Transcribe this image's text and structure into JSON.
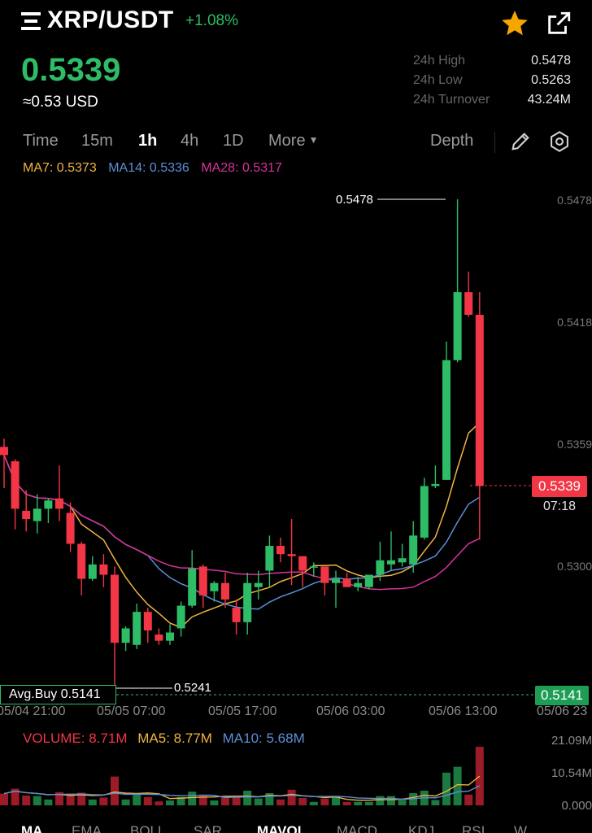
{
  "header": {
    "pair": "XRP/USDT",
    "change": "+1.08%",
    "price": "0.5339",
    "approx": "≈0.53 USD",
    "stats": [
      {
        "label": "24h High",
        "value": "0.5478"
      },
      {
        "label": "24h Low",
        "value": "0.5263"
      },
      {
        "label": "24h Turnover",
        "value": "43.24M"
      }
    ]
  },
  "tabs": {
    "time": "Time",
    "m15": "15m",
    "h1": "1h",
    "h4": "4h",
    "d1": "1D",
    "more": "More",
    "depth": "Depth"
  },
  "ma": {
    "ma7": "MA7: 0.5373",
    "ma14": "MA14: 0.5336",
    "ma28": "MA28: 0.5317"
  },
  "price_axis": [
    "0.5478",
    "0.5418",
    "0.5359",
    "0.5300"
  ],
  "current_price": "0.5339",
  "countdown": "07:18",
  "avg_buy": "Avg.Buy 0.5141",
  "avg_buy_value": "0.5141",
  "high_marker": "0.5478",
  "low_marker": "0.5241",
  "time_axis": [
    "05/04 21:00",
    "05/05 07:00",
    "05/05 17:00",
    "05/06 03:00",
    "05/06 13:00",
    "05/06 23"
  ],
  "volume": {
    "volume": "VOLUME: 8.71M",
    "ma5": "MA5: 8.77M",
    "ma10": "MA10: 5.68M",
    "axis": [
      "21.09M",
      "10.54M",
      "0.000"
    ]
  },
  "bottom_tabs": [
    "MA",
    "EMA",
    "BOLL",
    "SAR",
    "MAVOL",
    "MACD",
    "KDJ",
    "RSI",
    "W"
  ],
  "colors": {
    "up": "#2ebd66",
    "down": "#f23645",
    "ma7": "#f0b341",
    "ma14": "#5b8fd6",
    "ma28": "#d6339a"
  },
  "chart_data": {
    "type": "candlestick",
    "candles": [
      {
        "o": 0.5358,
        "h": 0.5362,
        "l": 0.5338,
        "c": 0.5354
      },
      {
        "o": 0.5351,
        "h": 0.5352,
        "l": 0.5318,
        "c": 0.5328
      },
      {
        "o": 0.5327,
        "h": 0.5337,
        "l": 0.5317,
        "c": 0.5323
      },
      {
        "o": 0.5322,
        "h": 0.5335,
        "l": 0.5316,
        "c": 0.5328
      },
      {
        "o": 0.5328,
        "h": 0.5333,
        "l": 0.5321,
        "c": 0.5332
      },
      {
        "o": 0.5333,
        "h": 0.5349,
        "l": 0.5322,
        "c": 0.5328
      },
      {
        "o": 0.5326,
        "h": 0.5331,
        "l": 0.5307,
        "c": 0.5311
      },
      {
        "o": 0.5311,
        "h": 0.5312,
        "l": 0.5286,
        "c": 0.5294
      },
      {
        "o": 0.5294,
        "h": 0.5305,
        "l": 0.5293,
        "c": 0.5301
      },
      {
        "o": 0.5301,
        "h": 0.5306,
        "l": 0.529,
        "c": 0.5296
      },
      {
        "o": 0.5296,
        "h": 0.53,
        "l": 0.5241,
        "c": 0.5263
      },
      {
        "o": 0.5263,
        "h": 0.5271,
        "l": 0.5259,
        "c": 0.527
      },
      {
        "o": 0.5262,
        "h": 0.5282,
        "l": 0.526,
        "c": 0.5278
      },
      {
        "o": 0.5278,
        "h": 0.528,
        "l": 0.5263,
        "c": 0.5269
      },
      {
        "o": 0.5267,
        "h": 0.527,
        "l": 0.5262,
        "c": 0.5264
      },
      {
        "o": 0.5264,
        "h": 0.5272,
        "l": 0.5262,
        "c": 0.5268
      },
      {
        "o": 0.527,
        "h": 0.5283,
        "l": 0.5266,
        "c": 0.5281
      },
      {
        "o": 0.5281,
        "h": 0.5308,
        "l": 0.528,
        "c": 0.5299
      },
      {
        "o": 0.53,
        "h": 0.5301,
        "l": 0.528,
        "c": 0.5286
      },
      {
        "o": 0.5288,
        "h": 0.5293,
        "l": 0.5283,
        "c": 0.5292
      },
      {
        "o": 0.5292,
        "h": 0.5297,
        "l": 0.528,
        "c": 0.5284
      },
      {
        "o": 0.528,
        "h": 0.5284,
        "l": 0.5267,
        "c": 0.5273
      },
      {
        "o": 0.5273,
        "h": 0.5297,
        "l": 0.5267,
        "c": 0.5292
      },
      {
        "o": 0.529,
        "h": 0.5298,
        "l": 0.5284,
        "c": 0.5292
      },
      {
        "o": 0.5298,
        "h": 0.5315,
        "l": 0.529,
        "c": 0.531
      },
      {
        "o": 0.531,
        "h": 0.5314,
        "l": 0.5302,
        "c": 0.5306
      },
      {
        "o": 0.5306,
        "h": 0.5323,
        "l": 0.5291,
        "c": 0.5305
      },
      {
        "o": 0.5305,
        "h": 0.5305,
        "l": 0.529,
        "c": 0.5298
      },
      {
        "o": 0.53,
        "h": 0.5302,
        "l": 0.5295,
        "c": 0.53
      },
      {
        "o": 0.53,
        "h": 0.53,
        "l": 0.5286,
        "c": 0.5292
      },
      {
        "o": 0.5292,
        "h": 0.5298,
        "l": 0.528,
        "c": 0.5294
      },
      {
        "o": 0.5294,
        "h": 0.5297,
        "l": 0.529,
        "c": 0.529
      },
      {
        "o": 0.529,
        "h": 0.5295,
        "l": 0.5288,
        "c": 0.5292
      },
      {
        "o": 0.529,
        "h": 0.5296,
        "l": 0.5289,
        "c": 0.5296
      },
      {
        "o": 0.5296,
        "h": 0.5312,
        "l": 0.5293,
        "c": 0.5303
      },
      {
        "o": 0.5301,
        "h": 0.5317,
        "l": 0.5298,
        "c": 0.5303
      },
      {
        "o": 0.5302,
        "h": 0.5311,
        "l": 0.53,
        "c": 0.5304
      },
      {
        "o": 0.5301,
        "h": 0.5322,
        "l": 0.5297,
        "c": 0.5315
      },
      {
        "o": 0.5314,
        "h": 0.5343,
        "l": 0.5313,
        "c": 0.5339
      },
      {
        "o": 0.5339,
        "h": 0.5349,
        "l": 0.5338,
        "c": 0.534
      },
      {
        "o": 0.5342,
        "h": 0.5409,
        "l": 0.5342,
        "c": 0.54
      },
      {
        "o": 0.54,
        "h": 0.5478,
        "l": 0.5399,
        "c": 0.5433
      },
      {
        "o": 0.5433,
        "h": 0.5443,
        "l": 0.5421,
        "c": 0.5422
      },
      {
        "o": 0.5422,
        "h": 0.5433,
        "l": 0.5313,
        "c": 0.5339
      }
    ]
  }
}
